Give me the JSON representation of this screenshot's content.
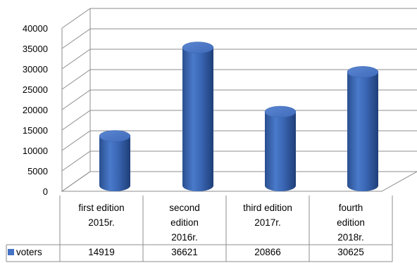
{
  "chart_data": {
    "type": "bar",
    "style": "3d-cylinder",
    "categories": [
      [
        "first edition",
        "2015r."
      ],
      [
        "second",
        "edition",
        "2016r."
      ],
      [
        "third edition",
        "2017r."
      ],
      [
        "fourth",
        "edition",
        "2018r."
      ]
    ],
    "series": [
      {
        "name": "voters",
        "values": [
          14919,
          36621,
          20866,
          30625
        ],
        "color": "#4472C4"
      }
    ],
    "yticks": [
      "0",
      "5000",
      "10000",
      "15000",
      "20000",
      "25000",
      "30000",
      "35000",
      "40000"
    ],
    "ylim": [
      0,
      40000
    ],
    "grid": true,
    "legend": "data-table"
  }
}
